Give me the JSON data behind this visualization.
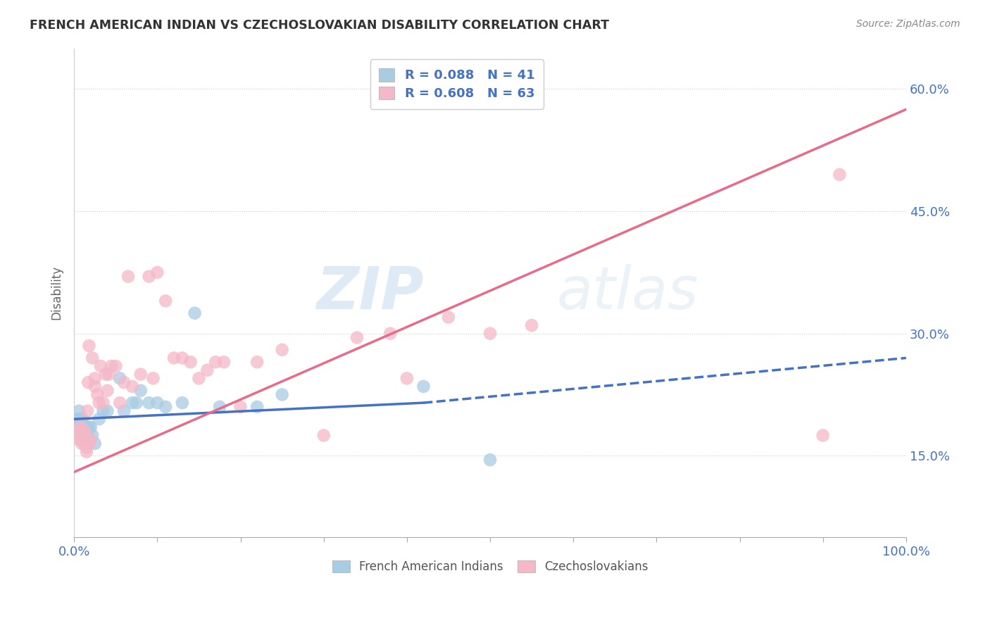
{
  "title": "FRENCH AMERICAN INDIAN VS CZECHOSLOVAKIAN DISABILITY CORRELATION CHART",
  "source": "Source: ZipAtlas.com",
  "ylabel": "Disability",
  "xlim": [
    0,
    1.0
  ],
  "ylim": [
    0.05,
    0.65
  ],
  "y_ticks": [
    0.15,
    0.3,
    0.45,
    0.6
  ],
  "y_tick_labels": [
    "15.0%",
    "30.0%",
    "45.0%",
    "60.0%"
  ],
  "legend_R1": "R = 0.088",
  "legend_N1": "N = 41",
  "legend_R2": "R = 0.608",
  "legend_N2": "N = 63",
  "color_blue": "#a8cce4",
  "color_pink": "#f4b8c8",
  "color_blue_line": "#4472c4",
  "color_pink_line": "#e96b8a",
  "color_text_blue": "#4472c4",
  "watermark_zip": "ZIP",
  "watermark_atlas": "atlas",
  "blue_line_solid_end": 0.42,
  "blue_line_y_start": 0.195,
  "blue_line_y_at_solid_end": 0.215,
  "blue_line_y_end": 0.27,
  "pink_line_y_start": 0.13,
  "pink_line_y_end": 0.575,
  "blue_scatter_x": [
    0.003,
    0.006,
    0.007,
    0.008,
    0.009,
    0.009,
    0.01,
    0.01,
    0.011,
    0.012,
    0.012,
    0.013,
    0.013,
    0.014,
    0.015,
    0.015,
    0.016,
    0.016,
    0.017,
    0.018,
    0.02,
    0.022,
    0.025,
    0.03,
    0.035,
    0.04,
    0.055,
    0.06,
    0.07,
    0.075,
    0.08,
    0.09,
    0.1,
    0.11,
    0.13,
    0.145,
    0.175,
    0.22,
    0.25,
    0.42,
    0.5
  ],
  "blue_scatter_y": [
    0.195,
    0.205,
    0.195,
    0.19,
    0.195,
    0.185,
    0.195,
    0.185,
    0.185,
    0.185,
    0.175,
    0.185,
    0.175,
    0.185,
    0.185,
    0.175,
    0.175,
    0.185,
    0.17,
    0.185,
    0.185,
    0.175,
    0.165,
    0.195,
    0.205,
    0.205,
    0.245,
    0.205,
    0.215,
    0.215,
    0.23,
    0.215,
    0.215,
    0.21,
    0.215,
    0.325,
    0.21,
    0.21,
    0.225,
    0.235,
    0.145
  ],
  "pink_scatter_x": [
    0.003,
    0.005,
    0.006,
    0.007,
    0.008,
    0.008,
    0.009,
    0.01,
    0.01,
    0.011,
    0.012,
    0.012,
    0.013,
    0.014,
    0.014,
    0.015,
    0.015,
    0.016,
    0.016,
    0.017,
    0.018,
    0.019,
    0.02,
    0.022,
    0.025,
    0.025,
    0.028,
    0.03,
    0.032,
    0.035,
    0.038,
    0.04,
    0.042,
    0.045,
    0.05,
    0.055,
    0.06,
    0.065,
    0.07,
    0.08,
    0.09,
    0.095,
    0.1,
    0.11,
    0.12,
    0.13,
    0.14,
    0.15,
    0.16,
    0.17,
    0.18,
    0.2,
    0.22,
    0.25,
    0.3,
    0.34,
    0.38,
    0.4,
    0.45,
    0.5,
    0.55,
    0.9,
    0.92
  ],
  "pink_scatter_y": [
    0.175,
    0.175,
    0.17,
    0.175,
    0.185,
    0.18,
    0.165,
    0.18,
    0.17,
    0.175,
    0.165,
    0.17,
    0.18,
    0.17,
    0.165,
    0.16,
    0.155,
    0.165,
    0.205,
    0.24,
    0.285,
    0.165,
    0.17,
    0.27,
    0.245,
    0.235,
    0.225,
    0.215,
    0.26,
    0.215,
    0.25,
    0.23,
    0.25,
    0.26,
    0.26,
    0.215,
    0.24,
    0.37,
    0.235,
    0.25,
    0.37,
    0.245,
    0.375,
    0.34,
    0.27,
    0.27,
    0.265,
    0.245,
    0.255,
    0.265,
    0.265,
    0.21,
    0.265,
    0.28,
    0.175,
    0.295,
    0.3,
    0.245,
    0.32,
    0.3,
    0.31,
    0.175,
    0.495
  ]
}
